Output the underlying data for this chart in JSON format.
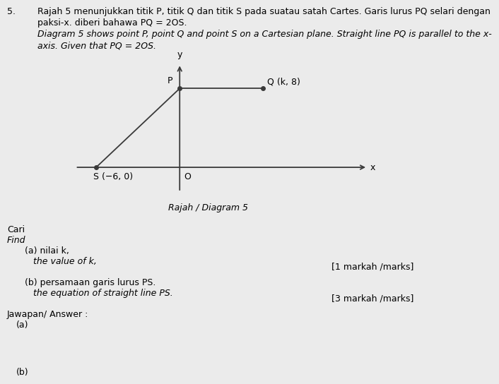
{
  "title_number": "5.",
  "malay_text_line1": "Rajah 5 menunjukkan titik P, titik Q dan titik S pada suatau satah Cartes. Garis lurus PQ selari dengan",
  "malay_text_line2": "paksi-x. diberi bahawa PQ = 2OS.",
  "english_text_line1": "Diagram 5 shows point P, point Q and point S on a Cartesian plane. Straight line PQ is parallel to the x-",
  "english_text_line2": "axis. Given that PQ = 2OS.",
  "diagram_label": "Rajah / Diagram 5",
  "point_Q_label": "Q (k, 8)",
  "point_S_label": "S (−6, 0)",
  "point_P_label": "P",
  "origin_label": "O",
  "x_label": "x",
  "y_label": "y",
  "cari": "Cari",
  "find": "Find",
  "part_a_malay": "(a) nilai k,",
  "part_a_english": "the value of k,",
  "part_b_malay": "(b) persamaan garis lurus PS.",
  "part_b_english": "the equation of straight line PS.",
  "marks_a": "[1 markah /marks]",
  "marks_b": "[3 markah /marks]",
  "jawapan_text": "Jawapan/ Answer :",
  "answer_a": "(a)",
  "answer_b": "(b)",
  "bg_color": "#ebebeb",
  "line_color": "#3a3a3a",
  "text_color": "#000000",
  "axis_color": "#3a3a3a",
  "point_color": "#3a3a3a",
  "fontsize_main": 9,
  "fontsize_label": 9
}
